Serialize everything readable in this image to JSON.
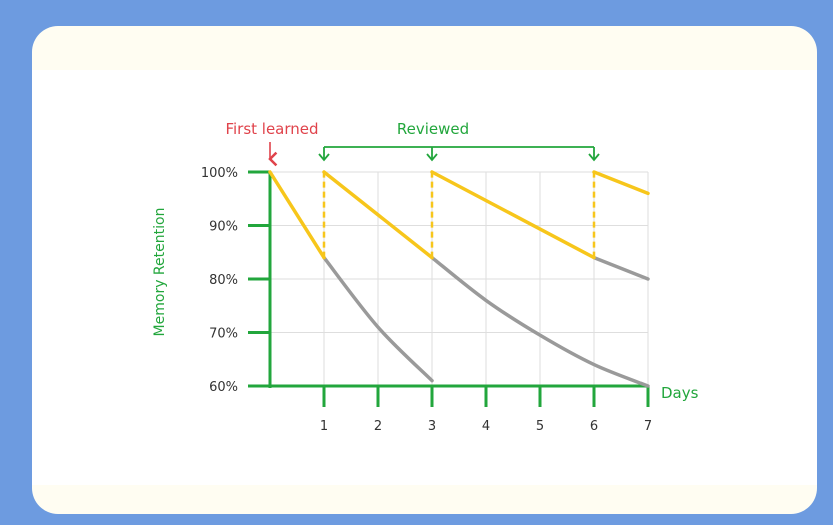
{
  "chart_data": {
    "type": "line",
    "title": "",
    "xlabel": "Days",
    "ylabel": "Memory Retention",
    "x_ticks": [
      "1",
      "2",
      "3",
      "4",
      "5",
      "6",
      "7"
    ],
    "y_ticks": [
      "100%",
      "90%",
      "80%",
      "70%",
      "60%"
    ],
    "xlim": [
      0,
      7
    ],
    "ylim": [
      60,
      100
    ],
    "grid": true,
    "annotations": {
      "first_learned": {
        "label": "First learned",
        "day": 0
      },
      "reviewed": {
        "label": "Reviewed",
        "days": [
          1,
          3,
          6
        ]
      }
    },
    "series": [
      {
        "role": "retention-with-reviews",
        "color": "#f7c61b",
        "segments": [
          [
            [
              0,
              100
            ],
            [
              1,
              84
            ]
          ],
          [
            [
              1,
              100
            ],
            [
              3,
              84
            ]
          ],
          [
            [
              3,
              100
            ],
            [
              6,
              84
            ]
          ],
          [
            [
              6,
              100
            ],
            [
              7,
              96
            ]
          ]
        ],
        "review_jumps": [
          [
            [
              1,
              84
            ],
            [
              1,
              100
            ]
          ],
          [
            [
              3,
              84
            ],
            [
              3,
              100
            ]
          ],
          [
            [
              6,
              84
            ],
            [
              6,
              100
            ]
          ]
        ]
      },
      {
        "role": "forgetting-without-review",
        "color": "#9a9a9a",
        "segments": [
          [
            [
              1,
              84
            ],
            [
              2,
              71
            ],
            [
              3,
              61
            ]
          ],
          [
            [
              3,
              84
            ],
            [
              4,
              76
            ],
            [
              5,
              69.5
            ],
            [
              6,
              64
            ],
            [
              7,
              60
            ]
          ],
          [
            [
              6,
              84
            ],
            [
              7,
              80
            ]
          ]
        ]
      }
    ],
    "colors": {
      "axis": "#22a63c",
      "first_learned": "#e0434b",
      "reviewed": "#22a63c",
      "grid": "#dedede",
      "tick_text": "#333333"
    }
  }
}
